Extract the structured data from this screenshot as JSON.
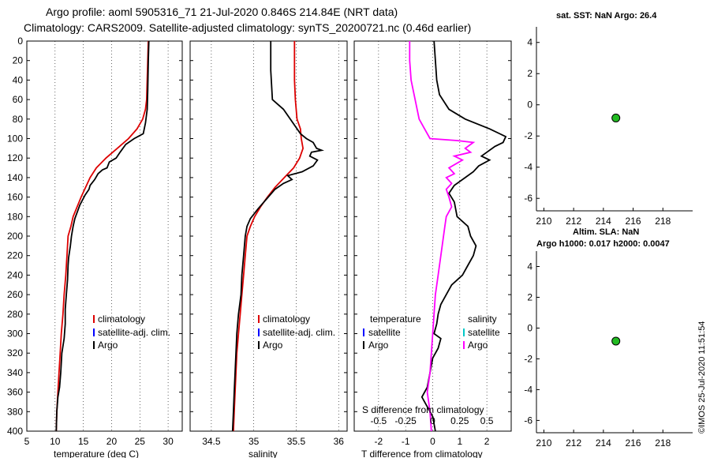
{
  "header": {
    "line1": "Argo profile: aoml 5905316_71 21-Jul-2020 0.846S 214.84E (NRT data)",
    "line2": "Climatology: CARS2009. Satellite-adjusted climatology: synTS_20200721.nc (0.46d earlier)"
  },
  "colors": {
    "climatology": "#dd0000",
    "satellite": "#0000ff",
    "argo": "#000000",
    "argo_salinity_diff": "#ff00ff",
    "satellite_salinity": "#00c8c8",
    "marker_fill": "#22bb22"
  },
  "legend_temp_sal": {
    "climatology": "climatology",
    "satellite": "satellite-adj. clim.",
    "argo": "Argo"
  },
  "legend_diff": {
    "temperature_header": "temperature",
    "salinity_header": "salinity",
    "satellite": "satellite",
    "argo": "Argo",
    "s_axis_title": "S difference from climatology"
  },
  "right_panels": {
    "sst_title": "sat. SST: NaN Argo: 26.4",
    "sla_title": "Altim. SLA: NaN",
    "h_title": "Argo h1000: 0.017 h2000: 0.0047"
  },
  "timestamp": "©IMOS 25-Jul-2020 11:51:54",
  "chart_data": [
    {
      "type": "line",
      "id": "temperature",
      "xlabel": "temperature (deg C)",
      "ylabel": "depth",
      "xlim": [
        5,
        32.5
      ],
      "ylim": [
        400,
        0
      ],
      "xticks": [
        5,
        10,
        15,
        20,
        25,
        30
      ],
      "yticks": [
        0,
        20,
        40,
        60,
        80,
        100,
        120,
        140,
        160,
        180,
        200,
        220,
        240,
        260,
        280,
        300,
        320,
        340,
        360,
        380,
        400
      ],
      "grid": true,
      "series": [
        {
          "name": "climatology",
          "color": "#dd0000",
          "points": [
            [
              26.5,
              0
            ],
            [
              26.4,
              20
            ],
            [
              26.3,
              40
            ],
            [
              26.2,
              60
            ],
            [
              26.0,
              70
            ],
            [
              25.5,
              80
            ],
            [
              24.5,
              90
            ],
            [
              23.0,
              100
            ],
            [
              21.0,
              110
            ],
            [
              19.0,
              120
            ],
            [
              17.3,
              130
            ],
            [
              16.2,
              140
            ],
            [
              15.4,
              150
            ],
            [
              14.6,
              160
            ],
            [
              13.9,
              170
            ],
            [
              13.2,
              180
            ],
            [
              12.8,
              190
            ],
            [
              12.3,
              200
            ],
            [
              12.1,
              220
            ],
            [
              11.9,
              240
            ],
            [
              11.6,
              260
            ],
            [
              11.4,
              280
            ],
            [
              11.1,
              300
            ],
            [
              10.9,
              320
            ],
            [
              10.7,
              340
            ],
            [
              10.5,
              360
            ],
            [
              10.3,
              380
            ],
            [
              10.2,
              400
            ]
          ]
        },
        {
          "name": "Argo",
          "color": "#000000",
          "points": [
            [
              26.6,
              0
            ],
            [
              26.5,
              20
            ],
            [
              26.4,
              50
            ],
            [
              26.3,
              70
            ],
            [
              26.0,
              84
            ],
            [
              25.6,
              95
            ],
            [
              24.0,
              100
            ],
            [
              22.5,
              106
            ],
            [
              21.5,
              114
            ],
            [
              20.8,
              120
            ],
            [
              19.6,
              124
            ],
            [
              19.2,
              130
            ],
            [
              18.4,
              132
            ],
            [
              17.6,
              136
            ],
            [
              17.0,
              142
            ],
            [
              16.2,
              148
            ],
            [
              16.0,
              152
            ],
            [
              15.3,
              158
            ],
            [
              14.4,
              168
            ],
            [
              13.5,
              182
            ],
            [
              13.2,
              190
            ],
            [
              12.9,
              200
            ],
            [
              12.7,
              210
            ],
            [
              12.4,
              222
            ],
            [
              12.3,
              230
            ],
            [
              12.2,
              245
            ],
            [
              12.0,
              260
            ],
            [
              11.8,
              275
            ],
            [
              11.8,
              290
            ],
            [
              11.6,
              305
            ],
            [
              11.2,
              320
            ],
            [
              11.0,
              340
            ],
            [
              10.8,
              355
            ],
            [
              10.5,
              365
            ],
            [
              10.3,
              380
            ],
            [
              10.2,
              400
            ]
          ]
        }
      ]
    },
    {
      "type": "line",
      "id": "salinity",
      "xlabel": "salinity",
      "ylabel": "depth",
      "xlim": [
        34.25,
        36.1
      ],
      "ylim": [
        400,
        0
      ],
      "xticks": [
        34.5,
        35,
        35.5,
        36
      ],
      "grid": true,
      "series": [
        {
          "name": "climatology",
          "color": "#dd0000",
          "points": [
            [
              35.48,
              0
            ],
            [
              35.48,
              40
            ],
            [
              35.49,
              60
            ],
            [
              35.51,
              80
            ],
            [
              35.55,
              90
            ],
            [
              35.56,
              100
            ],
            [
              35.58,
              110
            ],
            [
              35.54,
              120
            ],
            [
              35.47,
              130
            ],
            [
              35.36,
              140
            ],
            [
              35.25,
              150
            ],
            [
              35.16,
              160
            ],
            [
              35.08,
              170
            ],
            [
              35.01,
              180
            ],
            [
              34.96,
              190
            ],
            [
              34.92,
              200
            ],
            [
              34.9,
              220
            ],
            [
              34.88,
              240
            ],
            [
              34.86,
              260
            ],
            [
              34.84,
              280
            ],
            [
              34.82,
              300
            ],
            [
              34.8,
              320
            ],
            [
              34.79,
              340
            ],
            [
              34.78,
              360
            ],
            [
              34.77,
              380
            ],
            [
              34.76,
              400
            ]
          ]
        },
        {
          "name": "Argo",
          "color": "#000000",
          "points": [
            [
              35.2,
              0
            ],
            [
              35.2,
              30
            ],
            [
              35.22,
              60
            ],
            [
              35.35,
              70
            ],
            [
              35.55,
              95
            ],
            [
              35.62,
              100
            ],
            [
              35.7,
              104
            ],
            [
              35.74,
              110
            ],
            [
              35.8,
              112
            ],
            [
              35.68,
              114
            ],
            [
              35.66,
              118
            ],
            [
              35.75,
              122
            ],
            [
              35.7,
              128
            ],
            [
              35.57,
              134
            ],
            [
              35.4,
              138
            ],
            [
              35.45,
              142
            ],
            [
              35.35,
              146
            ],
            [
              35.25,
              152
            ],
            [
              35.15,
              162
            ],
            [
              35.05,
              172
            ],
            [
              34.96,
              182
            ],
            [
              34.92,
              190
            ],
            [
              34.9,
              200
            ],
            [
              34.88,
              220
            ],
            [
              34.86,
              240
            ],
            [
              34.85,
              260
            ],
            [
              34.82,
              280
            ],
            [
              34.8,
              300
            ],
            [
              34.79,
              320
            ],
            [
              34.78,
              340
            ],
            [
              34.77,
              360
            ],
            [
              34.76,
              380
            ],
            [
              34.75,
              400
            ]
          ]
        }
      ]
    },
    {
      "type": "line",
      "id": "difference",
      "xlabel": "T difference from climatology",
      "ylabel": "depth",
      "xlim": [
        -2.9,
        2.9
      ],
      "ylim": [
        400,
        0
      ],
      "xticks": [
        -2,
        -1,
        0,
        1,
        2
      ],
      "s_xticks_labels": [
        "-0.5",
        "-0.25",
        "0",
        "0.25",
        "0.5"
      ],
      "s_xticks_values": [
        -2,
        -1,
        0,
        1,
        2
      ],
      "grid": true,
      "series": [
        {
          "name": "temperature Argo",
          "color": "#000000",
          "points": [
            [
              0.05,
              0
            ],
            [
              0.1,
              20
            ],
            [
              0.15,
              40
            ],
            [
              0.25,
              55
            ],
            [
              0.6,
              70
            ],
            [
              1.2,
              80
            ],
            [
              2.1,
              90
            ],
            [
              2.7,
              98
            ],
            [
              2.6,
              104
            ],
            [
              2.3,
              108
            ],
            [
              1.8,
              118
            ],
            [
              2.1,
              122
            ],
            [
              1.7,
              128
            ],
            [
              1.5,
              134
            ],
            [
              1.2,
              140
            ],
            [
              0.8,
              148
            ],
            [
              0.6,
              156
            ],
            [
              0.8,
              165
            ],
            [
              0.9,
              180
            ],
            [
              1.3,
              190
            ],
            [
              1.4,
              200
            ],
            [
              1.6,
              210
            ],
            [
              1.5,
              220
            ],
            [
              1.3,
              230
            ],
            [
              1.1,
              240
            ],
            [
              0.7,
              250
            ],
            [
              0.5,
              260
            ],
            [
              0.3,
              270
            ],
            [
              0.2,
              280
            ],
            [
              0.15,
              290
            ],
            [
              0.05,
              300
            ],
            [
              0.3,
              305
            ],
            [
              0.2,
              315
            ],
            [
              0.0,
              325
            ],
            [
              -0.1,
              340
            ],
            [
              -0.2,
              355
            ],
            [
              -0.4,
              365
            ],
            [
              -0.2,
              375
            ],
            [
              0.0,
              385
            ],
            [
              0.1,
              400
            ]
          ]
        },
        {
          "name": "salinity Argo",
          "color": "#ff00ff",
          "points": [
            [
              -0.85,
              0
            ],
            [
              -0.85,
              20
            ],
            [
              -0.8,
              40
            ],
            [
              -0.65,
              60
            ],
            [
              -0.5,
              80
            ],
            [
              -0.3,
              90
            ],
            [
              -0.1,
              100
            ],
            [
              0.9,
              102
            ],
            [
              1.5,
              104
            ],
            [
              1.2,
              110
            ],
            [
              1.4,
              114
            ],
            [
              0.8,
              118
            ],
            [
              1.1,
              122
            ],
            [
              0.6,
              130
            ],
            [
              0.8,
              136
            ],
            [
              0.5,
              140
            ],
            [
              0.7,
              146
            ],
            [
              0.5,
              152
            ],
            [
              0.6,
              160
            ],
            [
              0.7,
              170
            ],
            [
              0.5,
              180
            ],
            [
              0.45,
              190
            ],
            [
              0.4,
              200
            ],
            [
              0.3,
              220
            ],
            [
              0.2,
              240
            ],
            [
              0.1,
              260
            ],
            [
              0.05,
              280
            ],
            [
              0.0,
              300
            ],
            [
              -0.05,
              320
            ],
            [
              -0.1,
              340
            ],
            [
              -0.2,
              360
            ],
            [
              -0.1,
              380
            ],
            [
              -0.05,
              400
            ]
          ]
        }
      ]
    },
    {
      "type": "scatter",
      "id": "sst_map",
      "xlim": [
        209.5,
        220
      ],
      "ylim": [
        -6.8,
        5
      ],
      "xticks": [
        210,
        212,
        214,
        216,
        218
      ],
      "yticks": [
        4,
        2,
        0,
        -2,
        -4,
        -6
      ],
      "points": [
        [
          214.84,
          -0.846
        ]
      ]
    },
    {
      "type": "scatter",
      "id": "sla_map",
      "xlim": [
        209.5,
        220
      ],
      "ylim": [
        -6.8,
        5
      ],
      "xticks": [
        210,
        212,
        214,
        216,
        218
      ],
      "yticks": [
        4,
        2,
        0,
        -2,
        -4,
        -6
      ],
      "points": [
        [
          214.84,
          -0.846
        ]
      ]
    }
  ]
}
